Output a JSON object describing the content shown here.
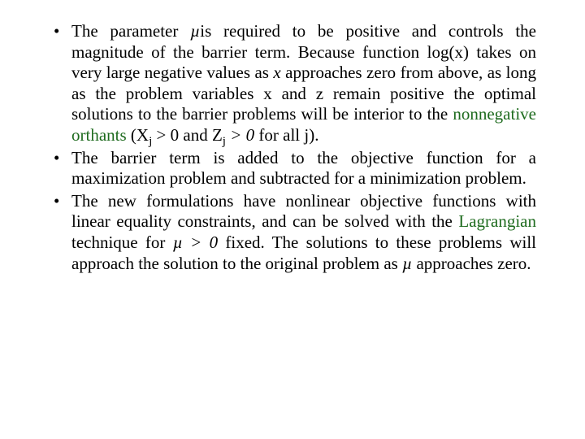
{
  "colors": {
    "text": "#000000",
    "background": "#ffffff",
    "link_green": "#1e6b1e"
  },
  "typography": {
    "family": "Times New Roman",
    "size_pt": 16,
    "line_height": 1.22,
    "align": "justify"
  },
  "bullets": [
    {
      "t1": "The parameter ",
      "mu1": "µ",
      "t2": "is required to be positive and controls the magnitude of the barrier term. Because function log(x) takes on very large negative values as ",
      "x_it": "x",
      "t3": " approaches zero from above, as long as the problem variables x and z remain positive the optimal solutions to the barrier problems will be interior to the ",
      "nonneg": "nonnegative orthants",
      "t4": " (X",
      "sub_j1": "j",
      "t5": " > 0 and Z",
      "sub_j2": "j",
      "t6": " ",
      "gt0": "> 0",
      "t7": " for all j)."
    },
    {
      "text": "The barrier term is added to the objective function for a maximization problem and subtracted for a minimization problem."
    },
    {
      "t1": "The new formulations have nonlinear objective functions with linear equality constraints, and can be solved with the ",
      "lagr": "Lagrangian",
      "t2": " technique for ",
      "mu_gt0": "µ > 0",
      "t3": " fixed. The solutions to these problems will approach the solution to the original problem as ",
      "mu2": "µ",
      "t4": " approaches zero."
    }
  ]
}
